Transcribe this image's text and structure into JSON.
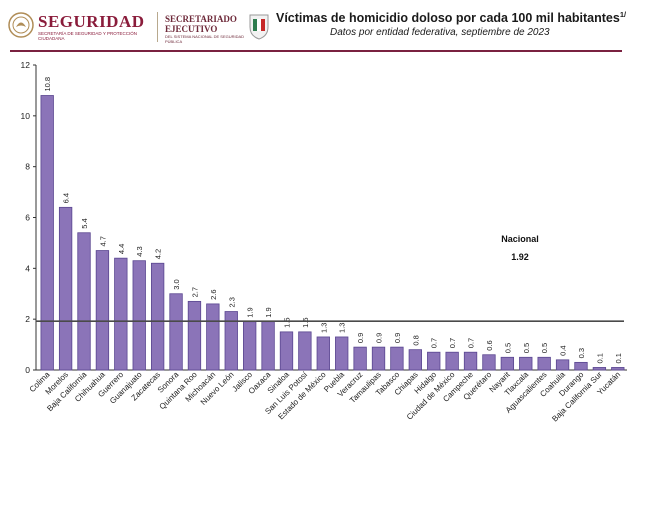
{
  "header": {
    "logo_word": "SEGURIDAD",
    "logo_subtitle": "SECRETARÍA DE SEGURIDAD Y PROTECCIÓN CIUDADANA",
    "sec_line1": "SECRETARIADO",
    "sec_line2": "EJECUTIVO",
    "sec_subtitle": "DEL SISTEMA NACIONAL DE SEGURIDAD PÚBLICA",
    "title": "Víctimas de homicidio doloso por cada 100 mil habitantes",
    "title_note": "1/",
    "subtitle": "Datos por entidad federativa, septiembre de 2023"
  },
  "colors": {
    "bar": "#8b74b8",
    "bar_edge": "#5a4690",
    "line": "#4a4a4a",
    "brand": "#8a1c3b"
  },
  "chart_data": {
    "type": "bar",
    "categories": [
      "Colima",
      "Morelos",
      "Baja California",
      "Chihuahua",
      "Guerrero",
      "Guanajuato",
      "Zacatecas",
      "Sonora",
      "Quintana Roo",
      "Michoacán",
      "Nuevo León",
      "Jalisco",
      "Oaxaca",
      "Sinaloa",
      "San Luis Potosí",
      "Estado de México",
      "Puebla",
      "Veracruz",
      "Tamaulipas",
      "Tabasco",
      "Chiapas",
      "Hidalgo",
      "Ciudad de México",
      "Campeche",
      "Querétaro",
      "Nayarit",
      "Tlaxcala",
      "Aguascalientes",
      "Coahuila",
      "Durango",
      "Baja California Sur",
      "Yucatán"
    ],
    "values": [
      10.8,
      6.4,
      5.4,
      4.7,
      4.4,
      4.3,
      4.2,
      3.0,
      2.7,
      2.6,
      2.3,
      1.9,
      1.9,
      1.5,
      1.5,
      1.3,
      1.3,
      0.9,
      0.9,
      0.9,
      0.8,
      0.7,
      0.7,
      0.7,
      0.6,
      0.5,
      0.5,
      0.5,
      0.4,
      0.3,
      0.1,
      0.1
    ],
    "value_labels": [
      "10.8",
      "6.4",
      "5.4",
      "4.7",
      "4.4",
      "4.3",
      "4.2",
      "3.0",
      "2.7",
      "2.6",
      "2.3",
      "1.9",
      "1.9",
      "1.5",
      "1.5",
      "1.3",
      "1.3",
      "0.9",
      "0.9",
      "0.9",
      "0.8",
      "0.7",
      "0.7",
      "0.7",
      "0.6",
      "0.5",
      "0.5",
      "0.5",
      "0.4",
      "0.3",
      "0.1",
      "0.1"
    ],
    "ylim": [
      0,
      12
    ],
    "yticks": [
      0,
      2,
      4,
      6,
      8,
      10,
      12
    ],
    "reference_line": {
      "label": "Nacional",
      "value": 1.92,
      "value_label": "1.92"
    },
    "xlabel": "",
    "ylabel": "",
    "grid": false
  }
}
